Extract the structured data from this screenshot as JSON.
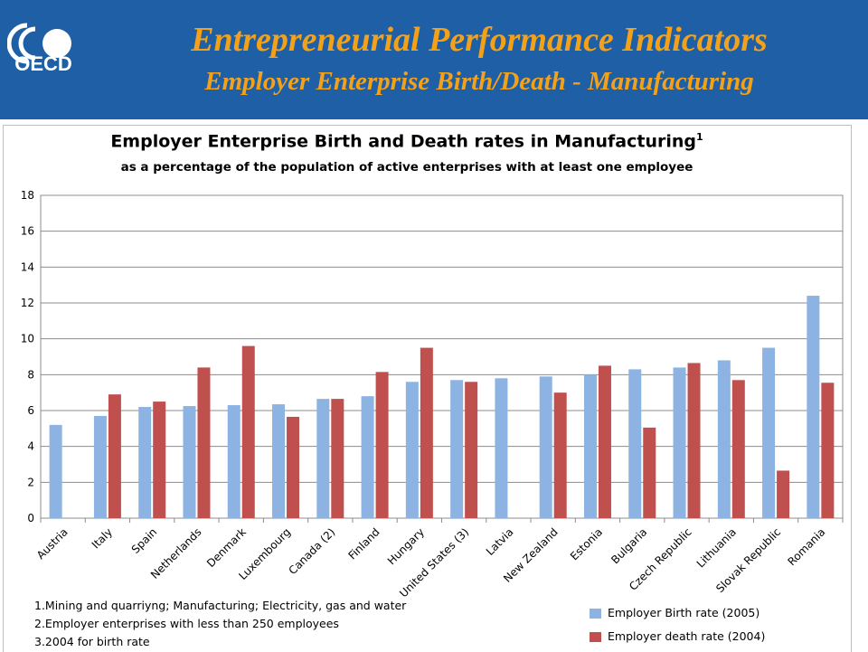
{
  "header": {
    "logo_text": "OECD",
    "title": "Entrepreneurial Performance Indicators",
    "subtitle": "Employer Enterprise Birth/Death - Manufacturing"
  },
  "colors": {
    "header_bg": "#1f5fa6",
    "header_text": "#f4a11a",
    "birth": "#8db3e2",
    "death": "#c0504d"
  },
  "chart_data": {
    "type": "bar",
    "title": "Employer Enterprise Birth and Death rates in Manufacturing",
    "title_superscript": "1",
    "subtitle": "as a percentage of the population of active enterprises with at least one employee",
    "categories": [
      "Austria",
      "Italy",
      "Spain",
      "Netherlands",
      "Denmark",
      "Luxembourg",
      "Canada (2)",
      "Finland",
      "Hungary",
      "United States (3)",
      "Latvia",
      "New Zealand",
      "Estonia",
      "Bulgaria",
      "Czech Republic",
      "Lithuania",
      "Slovak Republic",
      "Romania"
    ],
    "series": [
      {
        "name": "Employer Birth rate (2005)",
        "values": [
          5.2,
          5.7,
          6.2,
          6.25,
          6.3,
          6.35,
          6.65,
          6.8,
          7.6,
          7.7,
          7.8,
          7.9,
          8.0,
          8.3,
          8.4,
          8.8,
          9.5,
          12.4
        ]
      },
      {
        "name": "Employer death rate (2004)",
        "values": [
          null,
          6.9,
          6.5,
          8.4,
          9.6,
          5.65,
          6.65,
          8.15,
          9.5,
          7.6,
          null,
          7.0,
          8.5,
          5.05,
          8.65,
          7.7,
          2.65,
          7.55
        ]
      }
    ],
    "ylim": [
      0,
      18
    ],
    "yticks": [
      0,
      2,
      4,
      6,
      8,
      10,
      12,
      14,
      16,
      18
    ],
    "grid": true,
    "legend_position": "bottom-right"
  },
  "footnotes": [
    "1.Mining and quarriyng; Manufacturing; Electricity, gas and water",
    "2.Employer enterprises with less than 250 employees",
    "3.2004 for birth rate"
  ]
}
